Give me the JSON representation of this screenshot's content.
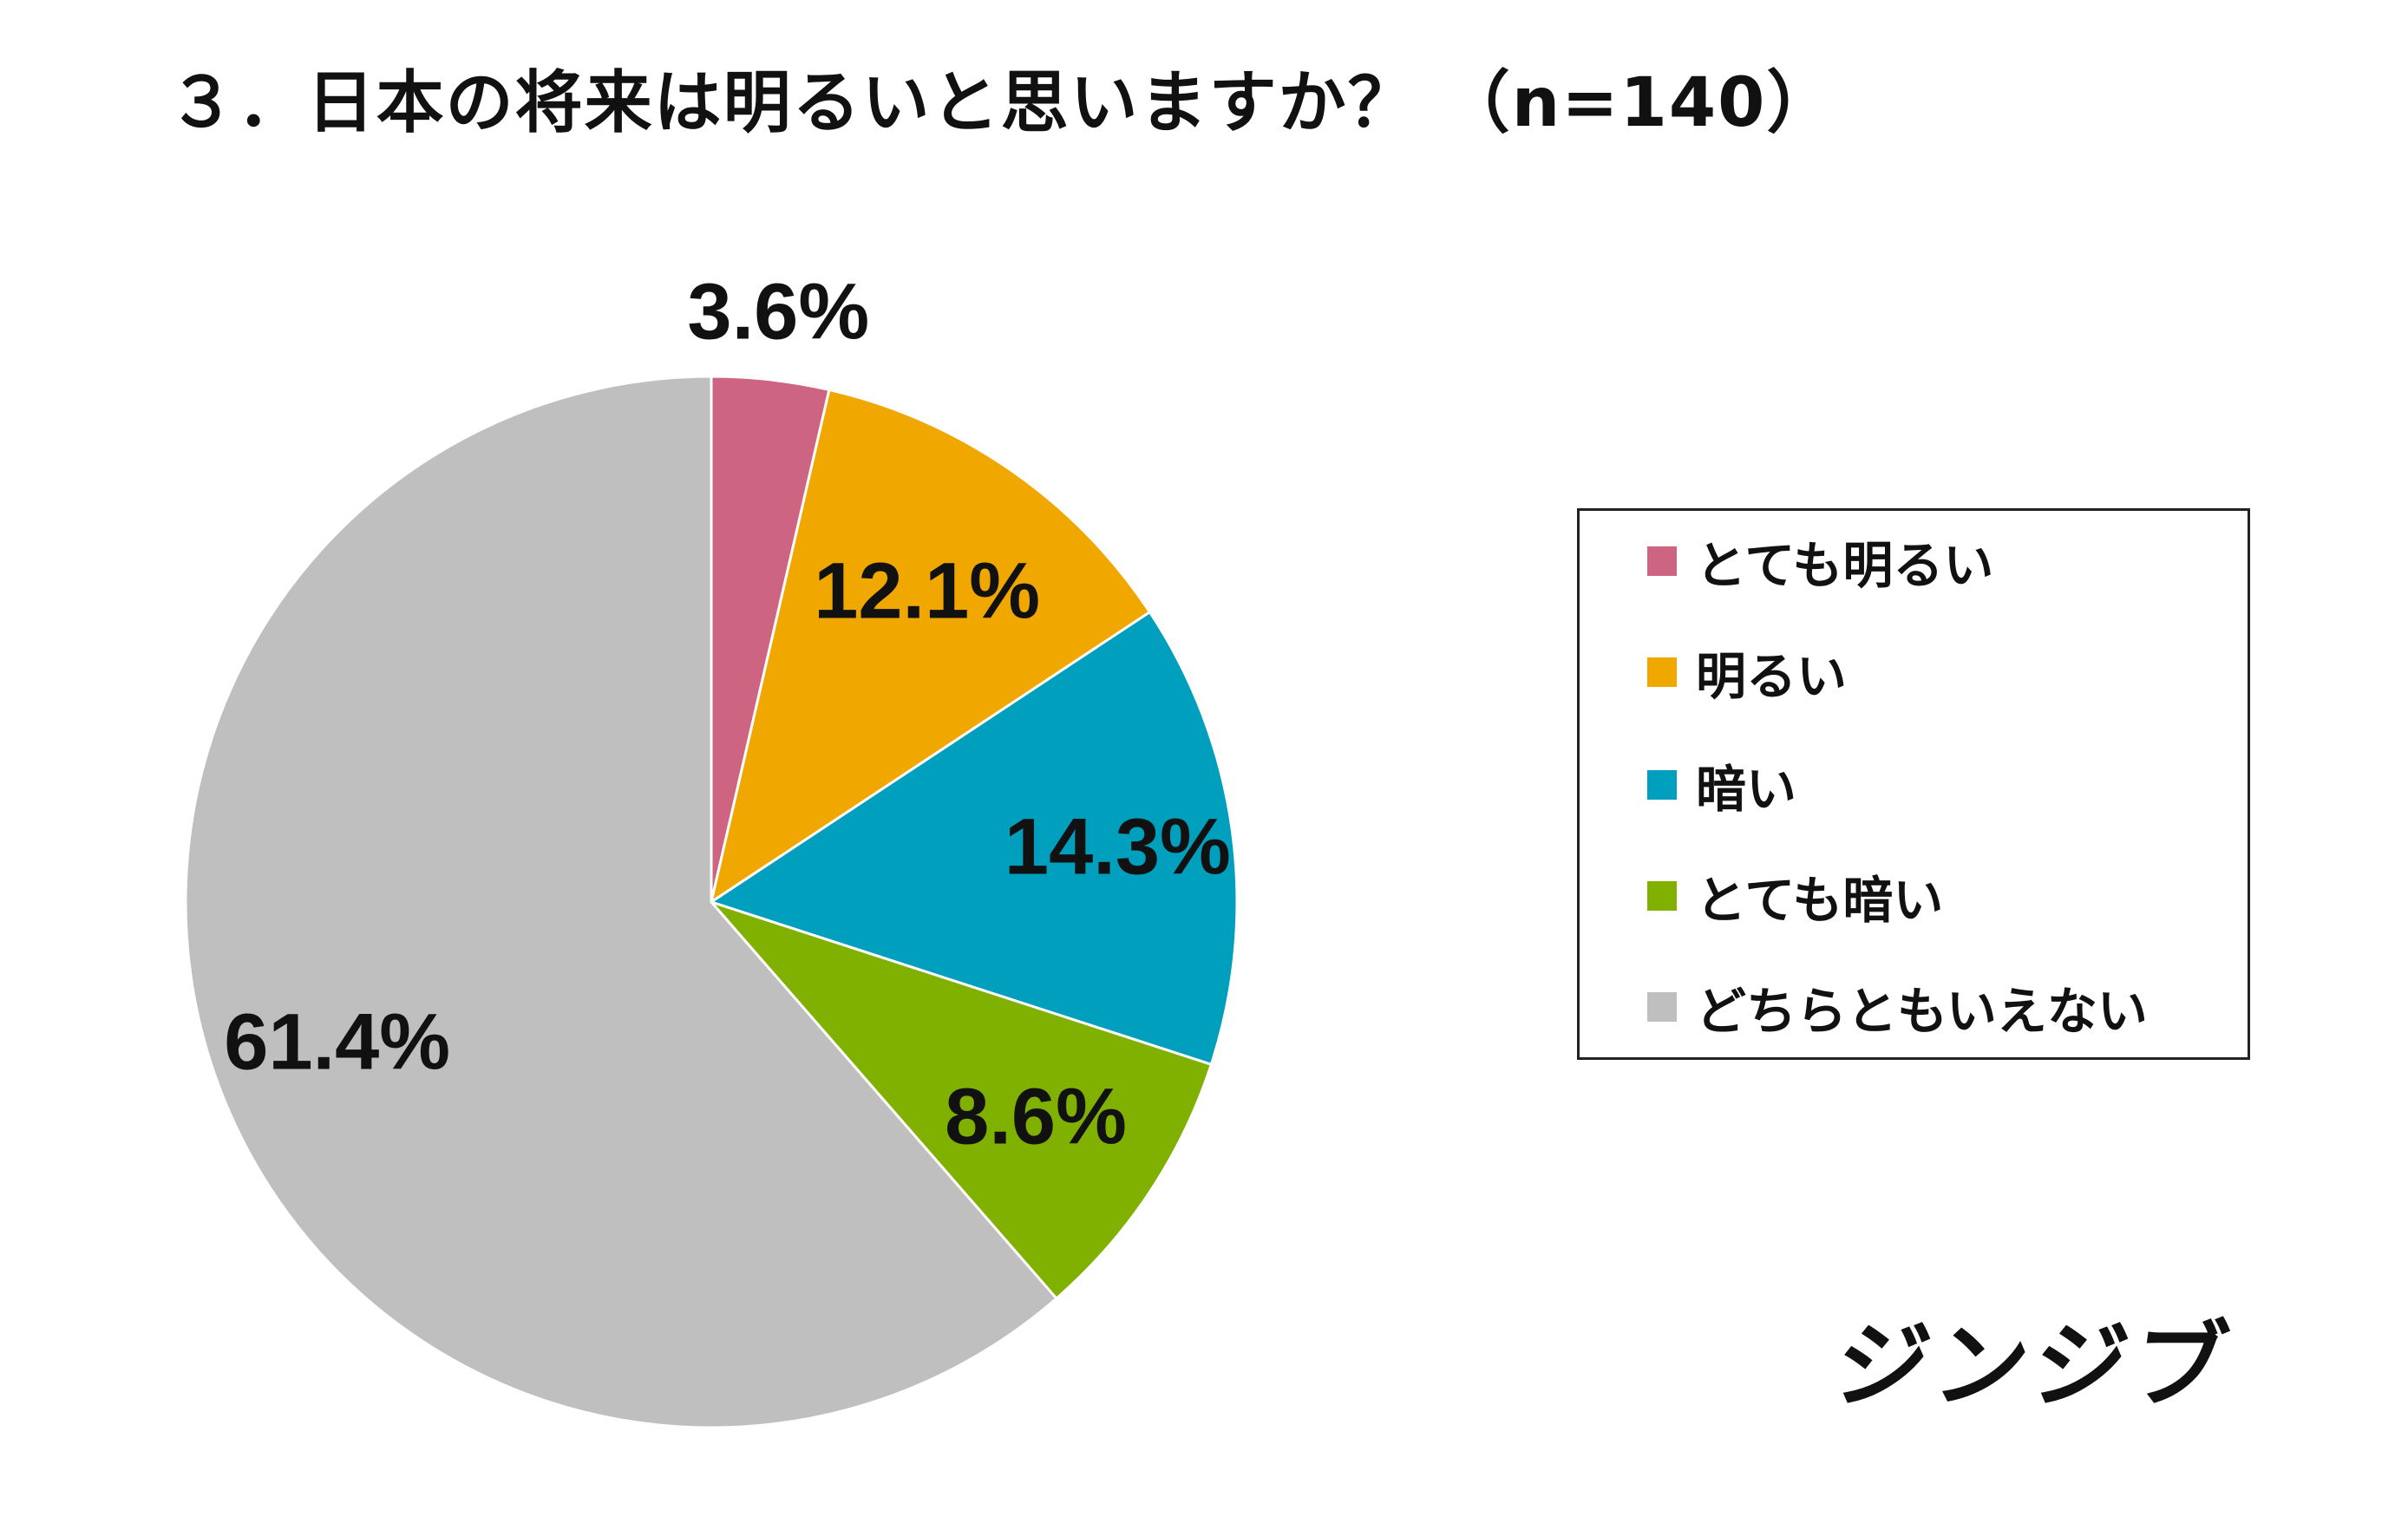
{
  "title": "３．日本の将来は明るいと思いますか？ （n=140）",
  "logo": "ジンジブ",
  "chart_data": {
    "type": "pie",
    "title": "３．日本の将来は明るいと思いますか？ （n=140）",
    "n": 140,
    "legend_position": "right",
    "slices": [
      {
        "label": "とても明るい",
        "value": 3.6,
        "display": "3.6%",
        "color": "#CD6482"
      },
      {
        "label": "明るい",
        "value": 12.1,
        "display": "12.1%",
        "color": "#F0A800"
      },
      {
        "label": "暗い",
        "value": 14.3,
        "display": "14.3%",
        "color": "#009FBE"
      },
      {
        "label": "とても暗い",
        "value": 8.6,
        "display": "8.6%",
        "color": "#80B000"
      },
      {
        "label": "どちらともいえない",
        "value": 61.4,
        "display": "61.4%",
        "color": "#BFBFBF"
      }
    ]
  }
}
